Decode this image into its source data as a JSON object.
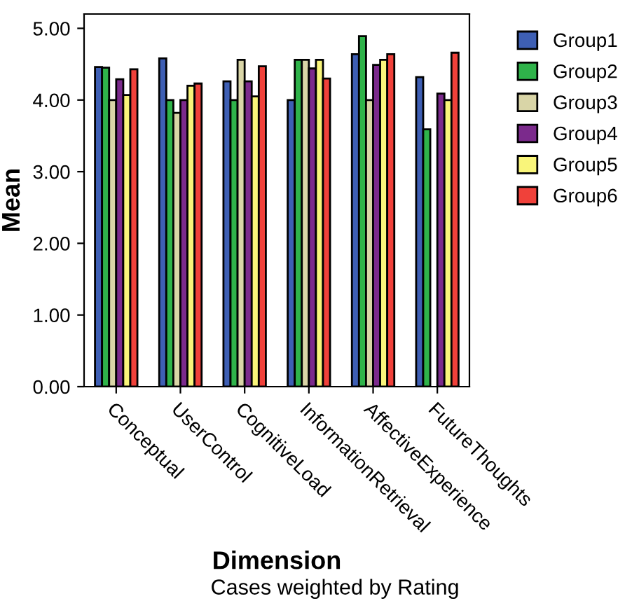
{
  "chart_data": {
    "type": "bar",
    "xlabel": "Dimension",
    "ylabel": "Mean",
    "annotations": [
      "Cases weighted by Rating"
    ],
    "categories": [
      "Conceptual",
      "UserControl",
      "CognitiveLoad",
      "InformationRetrieval",
      "AffectiveExperience",
      "FutureThoughts"
    ],
    "series": [
      {
        "name": "Group1",
        "color": "#3e5fb4",
        "values": [
          4.46,
          4.58,
          4.26,
          4.0,
          4.64,
          4.32
        ]
      },
      {
        "name": "Group2",
        "color": "#2fb34a",
        "values": [
          4.45,
          4.0,
          4.0,
          4.56,
          4.89,
          3.59
        ]
      },
      {
        "name": "Group3",
        "color": "#d9d5a7",
        "values": [
          4.0,
          3.82,
          4.56,
          4.56,
          4.0,
          null
        ]
      },
      {
        "name": "Group4",
        "color": "#7b2a8c",
        "values": [
          4.29,
          4.0,
          4.26,
          4.44,
          4.49,
          4.09
        ]
      },
      {
        "name": "Group5",
        "color": "#f9f57a",
        "values": [
          4.07,
          4.2,
          4.05,
          4.56,
          4.56,
          4.0
        ]
      },
      {
        "name": "Group6",
        "color": "#f0413a",
        "values": [
          4.43,
          4.23,
          4.47,
          4.3,
          4.64,
          4.66
        ]
      }
    ],
    "ylim": [
      0,
      5.2
    ],
    "yticks": [
      {
        "value": 0,
        "label": "0.00"
      },
      {
        "value": 1,
        "label": "1.00"
      },
      {
        "value": 2,
        "label": "2.00"
      },
      {
        "value": 3,
        "label": "3.00"
      },
      {
        "value": 4,
        "label": "4.00"
      },
      {
        "value": 5,
        "label": "5.00"
      }
    ],
    "grid": false,
    "legend": "top right"
  }
}
